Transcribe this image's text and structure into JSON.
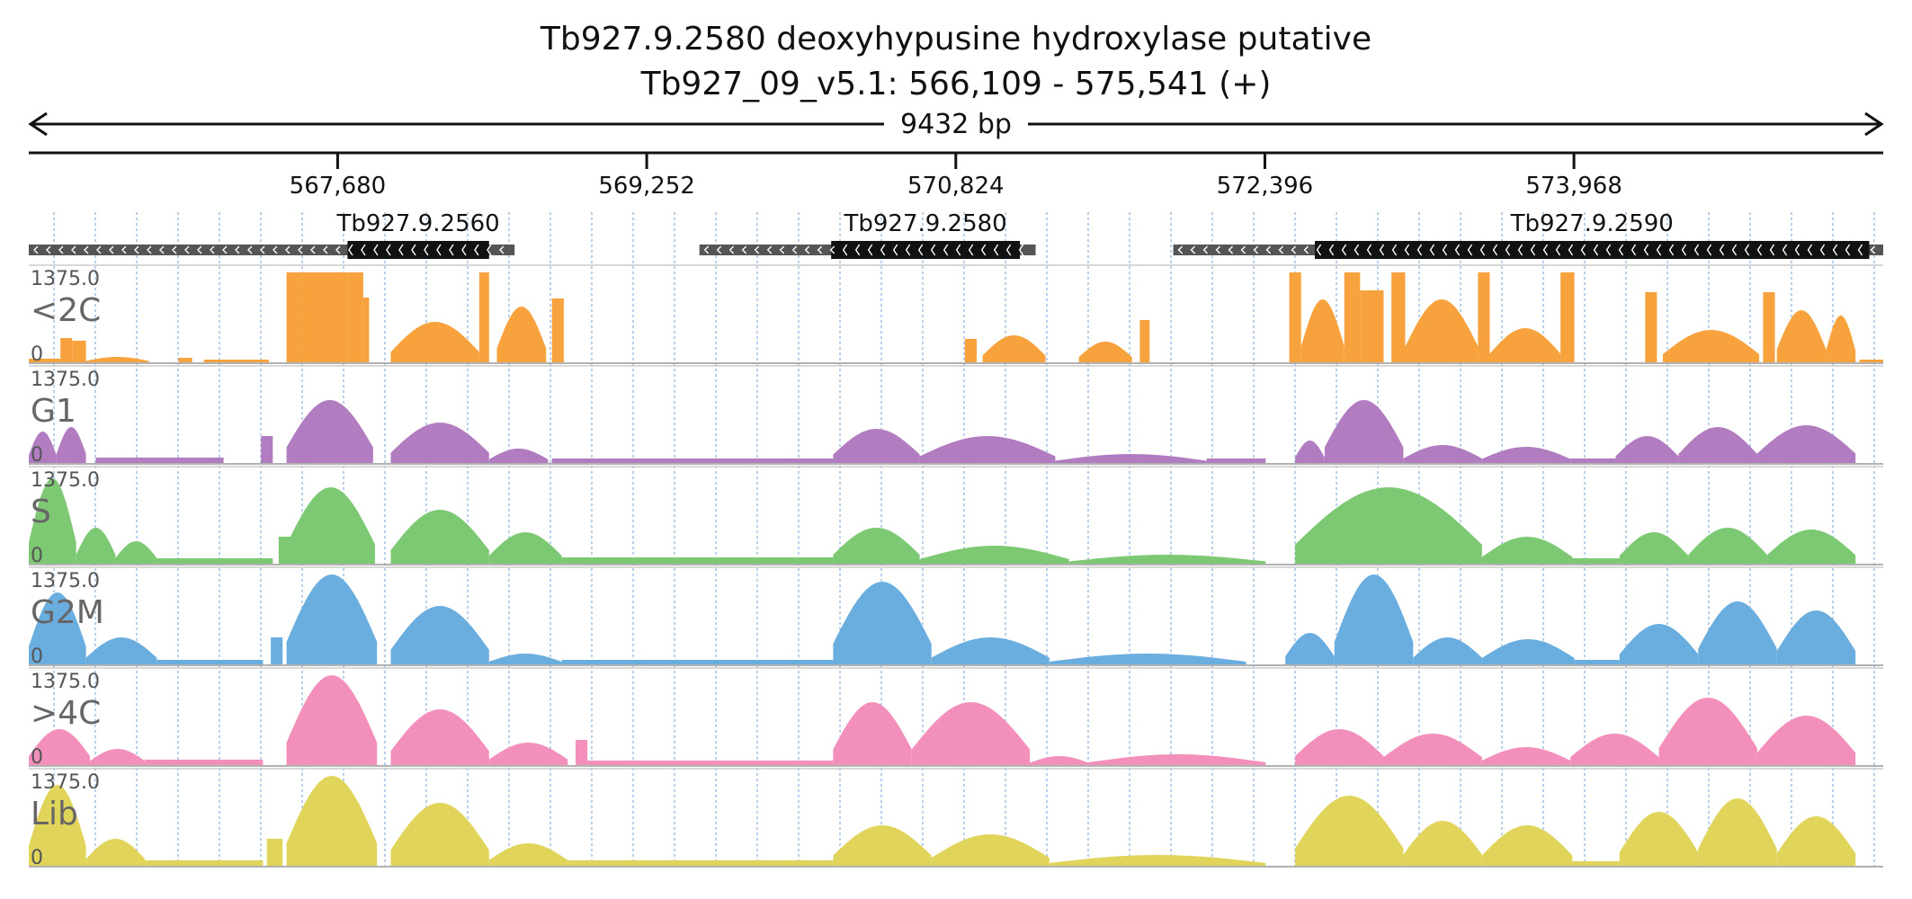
{
  "header": {
    "title": "Tb927.9.2580  deoxyhypusine hydroxylase  putative",
    "location": "Tb927_09_v5.1: 566,109 - 575,541 (+)"
  },
  "chart_data": {
    "type": "area",
    "region": {
      "chrom": "Tb927_09_v5.1",
      "start": 566109,
      "end": 575541,
      "strand": "+",
      "length_label": "9432 bp"
    },
    "ruler_ticks": [
      {
        "pos": 567680,
        "label": "567,680"
      },
      {
        "pos": 569252,
        "label": "569,252"
      },
      {
        "pos": 570824,
        "label": "570,824"
      },
      {
        "pos": 572396,
        "label": "572,396"
      },
      {
        "pos": 573968,
        "label": "573,968"
      }
    ],
    "genes": [
      {
        "name": "Tb927.9.2560",
        "start": 566109,
        "end": 568580,
        "cds_start": 567730,
        "cds_end": 568450,
        "strand": "-"
      },
      {
        "name": "Tb927.9.2580",
        "start": 569520,
        "end": 571230,
        "cds_start": 570190,
        "cds_end": 571150,
        "strand": "-"
      },
      {
        "name": "Tb927.9.2590",
        "start": 571930,
        "end": 575541,
        "cds_start": 572650,
        "cds_end": 575470,
        "strand": "-"
      }
    ],
    "tracks": [
      {
        "name": "<2C",
        "color": "#F7A23C",
        "ymax_label": "1375.0",
        "ymin_label": "0",
        "segments": [
          [
            566109,
            566270,
            0.04,
            "flat"
          ],
          [
            566270,
            566330,
            0.27,
            "flat"
          ],
          [
            566330,
            566400,
            0.24,
            "flat"
          ],
          [
            566400,
            566720,
            0.06,
            "hump"
          ],
          [
            566870,
            566940,
            0.05,
            "flat"
          ],
          [
            567000,
            567330,
            0.03,
            "flat"
          ],
          [
            567420,
            567500,
            1.0,
            "flat"
          ],
          [
            567500,
            567730,
            1.0,
            "flat"
          ],
          [
            567730,
            567810,
            1.0,
            "flat"
          ],
          [
            567810,
            567840,
            0.72,
            "flat"
          ],
          [
            567950,
            568400,
            0.45,
            "hump"
          ],
          [
            568400,
            568450,
            1.0,
            "flat"
          ],
          [
            568490,
            568740,
            0.62,
            "hump"
          ],
          [
            568770,
            568830,
            0.71,
            "flat"
          ],
          [
            570870,
            570930,
            0.26,
            "flat"
          ],
          [
            570960,
            571280,
            0.3,
            "hump"
          ],
          [
            571450,
            571720,
            0.23,
            "hump"
          ],
          [
            571760,
            571810,
            0.47,
            "flat"
          ],
          [
            572520,
            572580,
            1.0,
            "flat"
          ],
          [
            572580,
            572800,
            0.7,
            "hump"
          ],
          [
            572800,
            572880,
            1.0,
            "flat"
          ],
          [
            572880,
            573000,
            0.8,
            "flat"
          ],
          [
            573040,
            573110,
            1.0,
            "flat"
          ],
          [
            573110,
            573480,
            0.7,
            "hump"
          ],
          [
            573480,
            573540,
            1.0,
            "flat"
          ],
          [
            573540,
            573900,
            0.38,
            "hump"
          ],
          [
            573900,
            573970,
            1.0,
            "flat"
          ],
          [
            574330,
            574390,
            0.78,
            "flat"
          ],
          [
            574420,
            574910,
            0.36,
            "hump"
          ],
          [
            574930,
            574990,
            0.78,
            "flat"
          ],
          [
            575000,
            575250,
            0.58,
            "hump"
          ],
          [
            575250,
            575400,
            0.52,
            "hump"
          ],
          [
            575420,
            575541,
            0.03,
            "flat"
          ]
        ]
      },
      {
        "name": "G1",
        "color": "#B27CC0",
        "ymax_label": "1375.0",
        "ymin_label": "0",
        "segments": [
          [
            566109,
            566250,
            0.35,
            "hump"
          ],
          [
            566250,
            566400,
            0.4,
            "hump"
          ],
          [
            566450,
            567100,
            0.06,
            "flat"
          ],
          [
            567290,
            567350,
            0.3,
            "flat"
          ],
          [
            567420,
            567860,
            0.7,
            "hump"
          ],
          [
            567950,
            568450,
            0.45,
            "hump"
          ],
          [
            568450,
            568750,
            0.16,
            "hump"
          ],
          [
            568770,
            569800,
            0.05,
            "flat"
          ],
          [
            569800,
            570200,
            0.05,
            "flat"
          ],
          [
            570200,
            570640,
            0.38,
            "hump"
          ],
          [
            570640,
            571330,
            0.3,
            "hump"
          ],
          [
            571330,
            572100,
            0.1,
            "hump"
          ],
          [
            572100,
            572400,
            0.05,
            "flat"
          ],
          [
            572550,
            572700,
            0.25,
            "hump"
          ],
          [
            572700,
            573100,
            0.7,
            "hump"
          ],
          [
            573100,
            573500,
            0.2,
            "hump"
          ],
          [
            573500,
            573950,
            0.18,
            "hump"
          ],
          [
            573950,
            574180,
            0.05,
            "flat"
          ],
          [
            574180,
            574500,
            0.3,
            "hump"
          ],
          [
            574500,
            574900,
            0.4,
            "hump"
          ],
          [
            574900,
            575400,
            0.42,
            "hump"
          ]
        ]
      },
      {
        "name": "S",
        "color": "#7DC873",
        "ymax_label": "1375.0",
        "ymin_label": "0",
        "segments": [
          [
            566109,
            566350,
            0.95,
            "hump"
          ],
          [
            566350,
            566550,
            0.4,
            "hump"
          ],
          [
            566550,
            566760,
            0.25,
            "hump"
          ],
          [
            566760,
            567350,
            0.06,
            "flat"
          ],
          [
            567380,
            567440,
            0.3,
            "flat"
          ],
          [
            567420,
            567870,
            0.85,
            "hump"
          ],
          [
            567950,
            568450,
            0.6,
            "hump"
          ],
          [
            568450,
            568820,
            0.35,
            "hump"
          ],
          [
            568820,
            570200,
            0.07,
            "flat"
          ],
          [
            570200,
            570640,
            0.4,
            "hump"
          ],
          [
            570640,
            571400,
            0.2,
            "hump"
          ],
          [
            571400,
            572400,
            0.1,
            "hump"
          ],
          [
            572550,
            573500,
            0.85,
            "hump"
          ],
          [
            573500,
            573960,
            0.3,
            "hump"
          ],
          [
            573960,
            574200,
            0.06,
            "flat"
          ],
          [
            574200,
            574550,
            0.35,
            "hump"
          ],
          [
            574550,
            574950,
            0.4,
            "hump"
          ],
          [
            574950,
            575400,
            0.38,
            "hump"
          ]
        ]
      },
      {
        "name": "G2M",
        "color": "#6AAEE0",
        "ymax_label": "1375.0",
        "ymin_label": "0",
        "segments": [
          [
            566109,
            566400,
            0.8,
            "hump"
          ],
          [
            566400,
            566760,
            0.3,
            "hump"
          ],
          [
            566760,
            567300,
            0.05,
            "flat"
          ],
          [
            567340,
            567400,
            0.3,
            "flat"
          ],
          [
            567420,
            567880,
            1.0,
            "hump"
          ],
          [
            567950,
            568450,
            0.65,
            "hump"
          ],
          [
            568450,
            568820,
            0.12,
            "hump"
          ],
          [
            568820,
            570200,
            0.05,
            "flat"
          ],
          [
            570200,
            570700,
            0.92,
            "hump"
          ],
          [
            570700,
            571300,
            0.3,
            "hump"
          ],
          [
            571300,
            572300,
            0.12,
            "hump"
          ],
          [
            572500,
            572750,
            0.35,
            "hump"
          ],
          [
            572750,
            573150,
            1.0,
            "hump"
          ],
          [
            573150,
            573500,
            0.3,
            "hump"
          ],
          [
            573500,
            573970,
            0.28,
            "hump"
          ],
          [
            573970,
            574200,
            0.05,
            "flat"
          ],
          [
            574200,
            574600,
            0.45,
            "hump"
          ],
          [
            574600,
            575000,
            0.7,
            "hump"
          ],
          [
            575000,
            575400,
            0.6,
            "hump"
          ]
        ]
      },
      {
        "name": ">4C",
        "color": "#F290BB",
        "ymax_label": "1375.0",
        "ymin_label": "0",
        "segments": [
          [
            566109,
            566420,
            0.4,
            "hump"
          ],
          [
            566420,
            566700,
            0.18,
            "hump"
          ],
          [
            566700,
            567300,
            0.06,
            "flat"
          ],
          [
            567420,
            567880,
            1.0,
            "hump"
          ],
          [
            567950,
            568450,
            0.62,
            "hump"
          ],
          [
            568450,
            568850,
            0.25,
            "hump"
          ],
          [
            568890,
            568950,
            0.28,
            "flat"
          ],
          [
            568950,
            570200,
            0.05,
            "flat"
          ],
          [
            570200,
            570600,
            0.7,
            "hump"
          ],
          [
            570600,
            571200,
            0.7,
            "hump"
          ],
          [
            571200,
            571500,
            0.1,
            "hump"
          ],
          [
            571500,
            572400,
            0.12,
            "hump"
          ],
          [
            572550,
            573000,
            0.4,
            "hump"
          ],
          [
            573000,
            573500,
            0.35,
            "hump"
          ],
          [
            573500,
            573950,
            0.2,
            "hump"
          ],
          [
            573950,
            574400,
            0.35,
            "hump"
          ],
          [
            574400,
            574900,
            0.75,
            "hump"
          ],
          [
            574900,
            575400,
            0.55,
            "hump"
          ]
        ]
      },
      {
        "name": "Lib",
        "color": "#E0D45A",
        "ymax_label": "1375.0",
        "ymin_label": "0",
        "segments": [
          [
            566109,
            566400,
            0.9,
            "hump"
          ],
          [
            566400,
            566700,
            0.3,
            "hump"
          ],
          [
            566700,
            567300,
            0.06,
            "flat"
          ],
          [
            567320,
            567400,
            0.3,
            "flat"
          ],
          [
            567420,
            567880,
            1.0,
            "hump"
          ],
          [
            567950,
            568450,
            0.7,
            "hump"
          ],
          [
            568450,
            568850,
            0.25,
            "hump"
          ],
          [
            568850,
            570200,
            0.06,
            "flat"
          ],
          [
            570200,
            570700,
            0.45,
            "hump"
          ],
          [
            570700,
            571300,
            0.35,
            "hump"
          ],
          [
            571300,
            572400,
            0.12,
            "hump"
          ],
          [
            572550,
            573100,
            0.78,
            "hump"
          ],
          [
            573100,
            573500,
            0.5,
            "hump"
          ],
          [
            573500,
            573960,
            0.45,
            "hump"
          ],
          [
            573960,
            574200,
            0.05,
            "flat"
          ],
          [
            574200,
            574600,
            0.6,
            "hump"
          ],
          [
            574600,
            575000,
            0.75,
            "hump"
          ],
          [
            575000,
            575400,
            0.55,
            "hump"
          ]
        ]
      }
    ]
  }
}
